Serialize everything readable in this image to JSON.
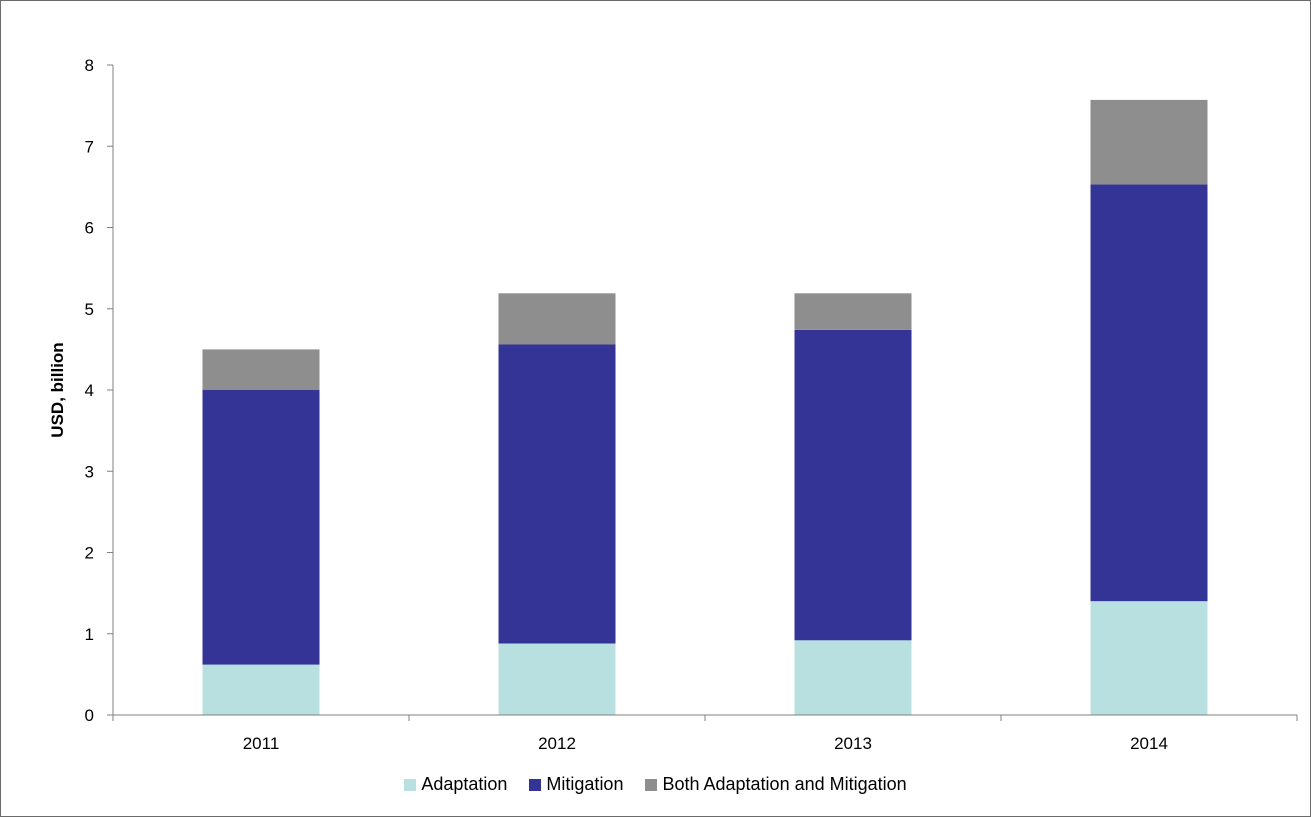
{
  "chart_data": {
    "type": "bar",
    "stacked": true,
    "categories": [
      "2011",
      "2012",
      "2013",
      "2014"
    ],
    "series": [
      {
        "name": "Adaptation",
        "color": "#b9e0e1",
        "values": [
          0.62,
          0.88,
          0.92,
          1.4
        ]
      },
      {
        "name": "Mitigation",
        "color": "#343496",
        "values": [
          3.38,
          3.68,
          3.82,
          5.13
        ]
      },
      {
        "name": "Both Adaptation and Mitigation",
        "color": "#8e8e8e",
        "values": [
          0.5,
          0.63,
          0.45,
          1.04
        ]
      }
    ],
    "title": "",
    "xlabel": "",
    "ylabel": "USD, billion",
    "ylim": [
      0,
      8
    ],
    "yticks": [
      "0",
      "1",
      "2",
      "3",
      "4",
      "5",
      "6",
      "7",
      "8"
    ],
    "grid": false,
    "legend_position": "bottom"
  }
}
